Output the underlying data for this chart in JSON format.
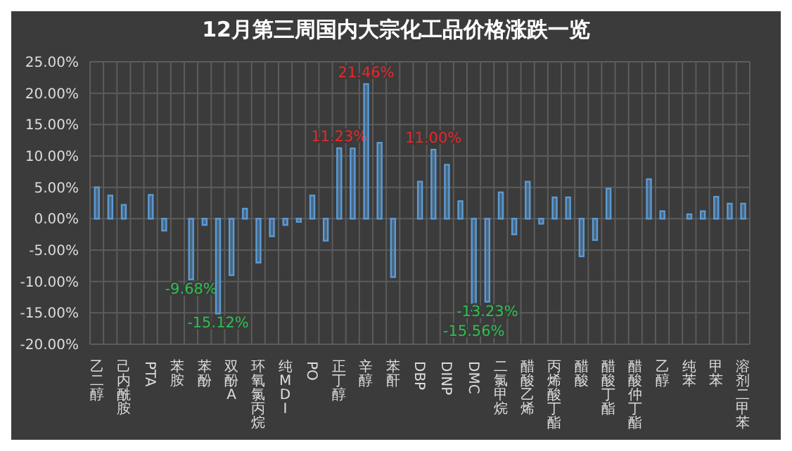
{
  "chart_data": {
    "type": "bar",
    "title": "12月第三周国内大宗化工品价格涨跌一览",
    "categories": [
      "乙二醇",
      null,
      "己内酰胺",
      null,
      "PTA",
      null,
      "苯胺",
      null,
      "苯酚",
      null,
      "双酚A",
      null,
      "环氧氯丙烷",
      null,
      "纯MDI",
      null,
      "PO",
      null,
      "正丁醇",
      null,
      "辛醇",
      null,
      "苯酐",
      null,
      "DBP",
      null,
      "DINP",
      null,
      "DMC",
      null,
      "二氯甲烷",
      null,
      "醋酸乙烯",
      null,
      "丙烯酸丁酯",
      null,
      "醋酸",
      null,
      "醋酸丁酯",
      null,
      "醋酸仲丁酯",
      null,
      "乙醇",
      null,
      "纯苯",
      null,
      "甲苯",
      null,
      "溶剂二甲苯"
    ],
    "values": [
      5.0,
      3.7,
      2.2,
      0,
      3.8,
      -1.9,
      0,
      -9.68,
      -1.0,
      -15.12,
      -9.0,
      1.6,
      -7.0,
      -2.8,
      -1.0,
      -0.5,
      3.7,
      -3.5,
      11.23,
      11.2,
      21.46,
      12.1,
      -9.3,
      0,
      5.9,
      11.0,
      8.6,
      2.8,
      -15.56,
      -13.23,
      4.2,
      -2.5,
      5.9,
      -0.8,
      3.4,
      3.4,
      -6.0,
      -3.4,
      4.8,
      0,
      0,
      6.3,
      1.2,
      0,
      0.7,
      1.2,
      3.5,
      2.4,
      2.4
    ],
    "value_labels": [
      null,
      null,
      null,
      null,
      null,
      null,
      null,
      "-9.68%",
      null,
      "-15.12%",
      null,
      null,
      null,
      null,
      null,
      null,
      null,
      null,
      "11.23%",
      null,
      "21.46%",
      null,
      null,
      null,
      null,
      "11.00%",
      null,
      null,
      "-15.56%",
      "-13.23%",
      null,
      null,
      null,
      null,
      null,
      null,
      null,
      null,
      null,
      null,
      null,
      null,
      null,
      null,
      null,
      null,
      null,
      null,
      null
    ],
    "color": "#5b9bd5",
    "ylim": [
      -20,
      25
    ],
    "yticks": [
      {
        "value": -20,
        "label": "-20.00%"
      },
      {
        "value": -15,
        "label": "-15.00%"
      },
      {
        "value": -10,
        "label": "-10.00%"
      },
      {
        "value": -5,
        "label": "-5.00%"
      },
      {
        "value": 0,
        "label": "0.00%"
      },
      {
        "value": 5,
        "label": "5.00%"
      },
      {
        "value": 10,
        "label": "10.00%"
      },
      {
        "value": 15,
        "label": "15.00%"
      },
      {
        "value": 20,
        "label": "20.00%"
      },
      {
        "value": 25,
        "label": "25.00%"
      }
    ],
    "grid": true
  }
}
